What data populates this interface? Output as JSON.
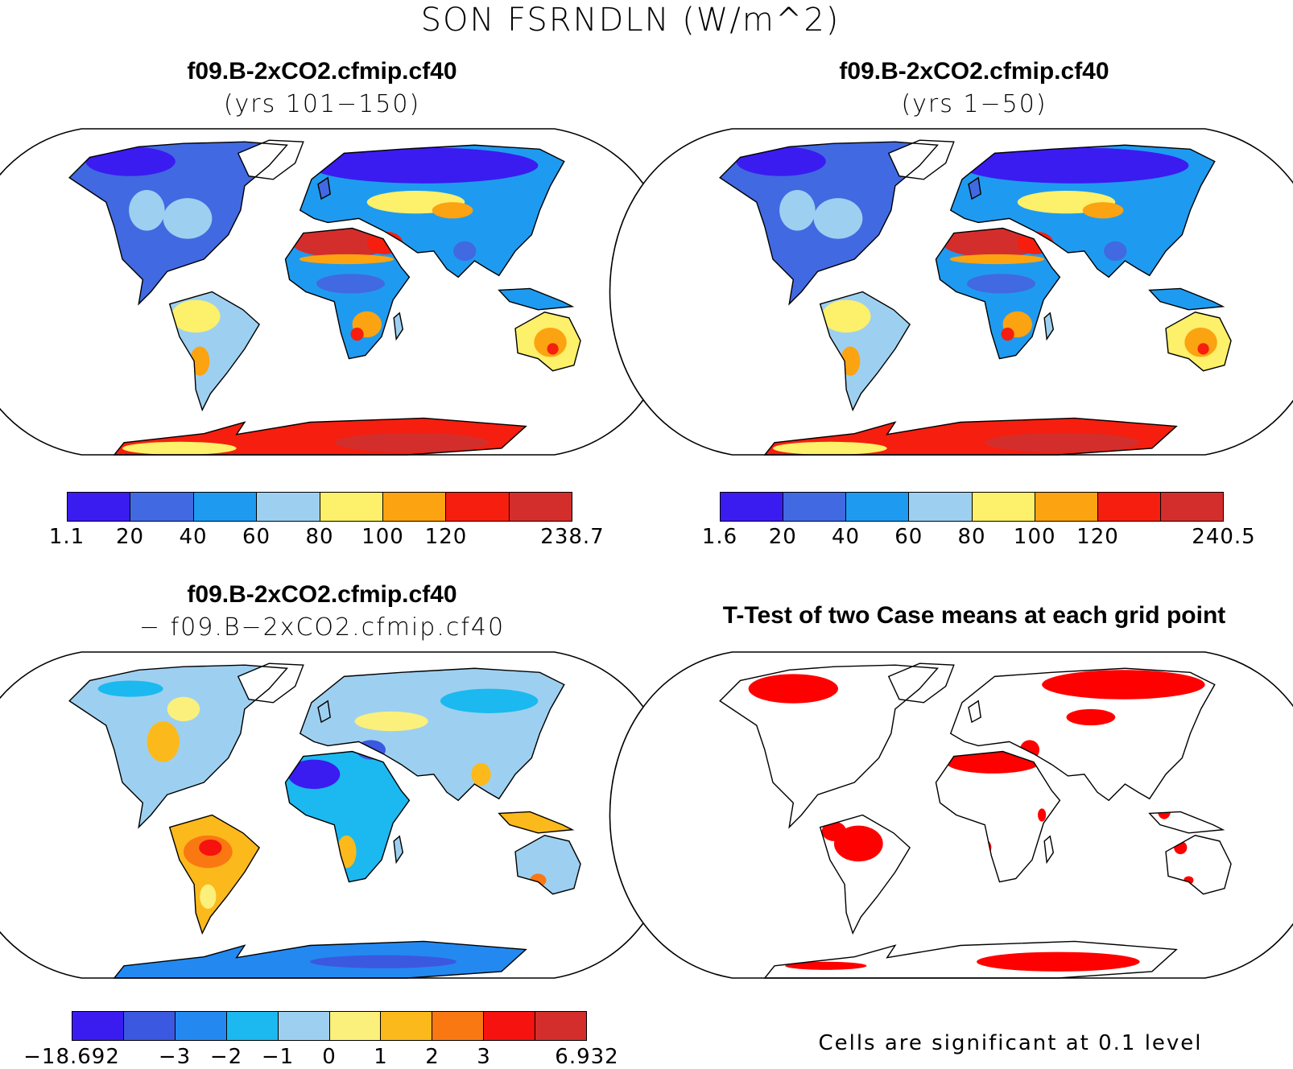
{
  "title": "SON FSRNDLN (W/m^2)",
  "panels": [
    {
      "title": "f09.B-2xCO2.cfmip.cf40",
      "subtitle": "(yrs 101−150)",
      "colorbar": {
        "colors": [
          "#3a1cf0",
          "#4169e1",
          "#1e9bf0",
          "#9dd0f0",
          "#fdf06a",
          "#fca312",
          "#f61e0e",
          "#d42e2c"
        ],
        "labels": [
          "1.1",
          "20",
          "40",
          "60",
          "80",
          "100",
          "120",
          "238.7"
        ],
        "label_positions": [
          0,
          1,
          2,
          3,
          4,
          5,
          6,
          8
        ]
      }
    },
    {
      "title": "f09.B-2xCO2.cfmip.cf40",
      "subtitle": "(yrs 1−50)",
      "colorbar": {
        "colors": [
          "#3a1cf0",
          "#4169e1",
          "#1e9bf0",
          "#9dd0f0",
          "#fdf06a",
          "#fca312",
          "#f61e0e",
          "#d42e2c"
        ],
        "labels": [
          "1.6",
          "20",
          "40",
          "60",
          "80",
          "100",
          "120",
          "240.5"
        ],
        "label_positions": [
          0,
          1,
          2,
          3,
          4,
          5,
          6,
          8
        ]
      }
    },
    {
      "title": "f09.B-2xCO2.cfmip.cf40",
      "subtitle": "− f09.B−2xCO2.cfmip.cf40",
      "colorbar": {
        "colors": [
          "#3a1cf0",
          "#3b58e0",
          "#2389f0",
          "#1bb9f0",
          "#9dd0f0",
          "#fcf07c",
          "#fcb91c",
          "#fa7812",
          "#f6120e",
          "#d42e2c"
        ],
        "labels": [
          "−18.692",
          "−3",
          "−2",
          "−1",
          "0",
          "1",
          "2",
          "3",
          "6.932"
        ],
        "label_positions": [
          0,
          2,
          3,
          4,
          5,
          6,
          7,
          8,
          10
        ]
      }
    },
    {
      "title": "T-Test of two Case means at each grid point",
      "note": "Cells are significant at 0.1 level",
      "significant_color": "#ff0000"
    }
  ]
}
